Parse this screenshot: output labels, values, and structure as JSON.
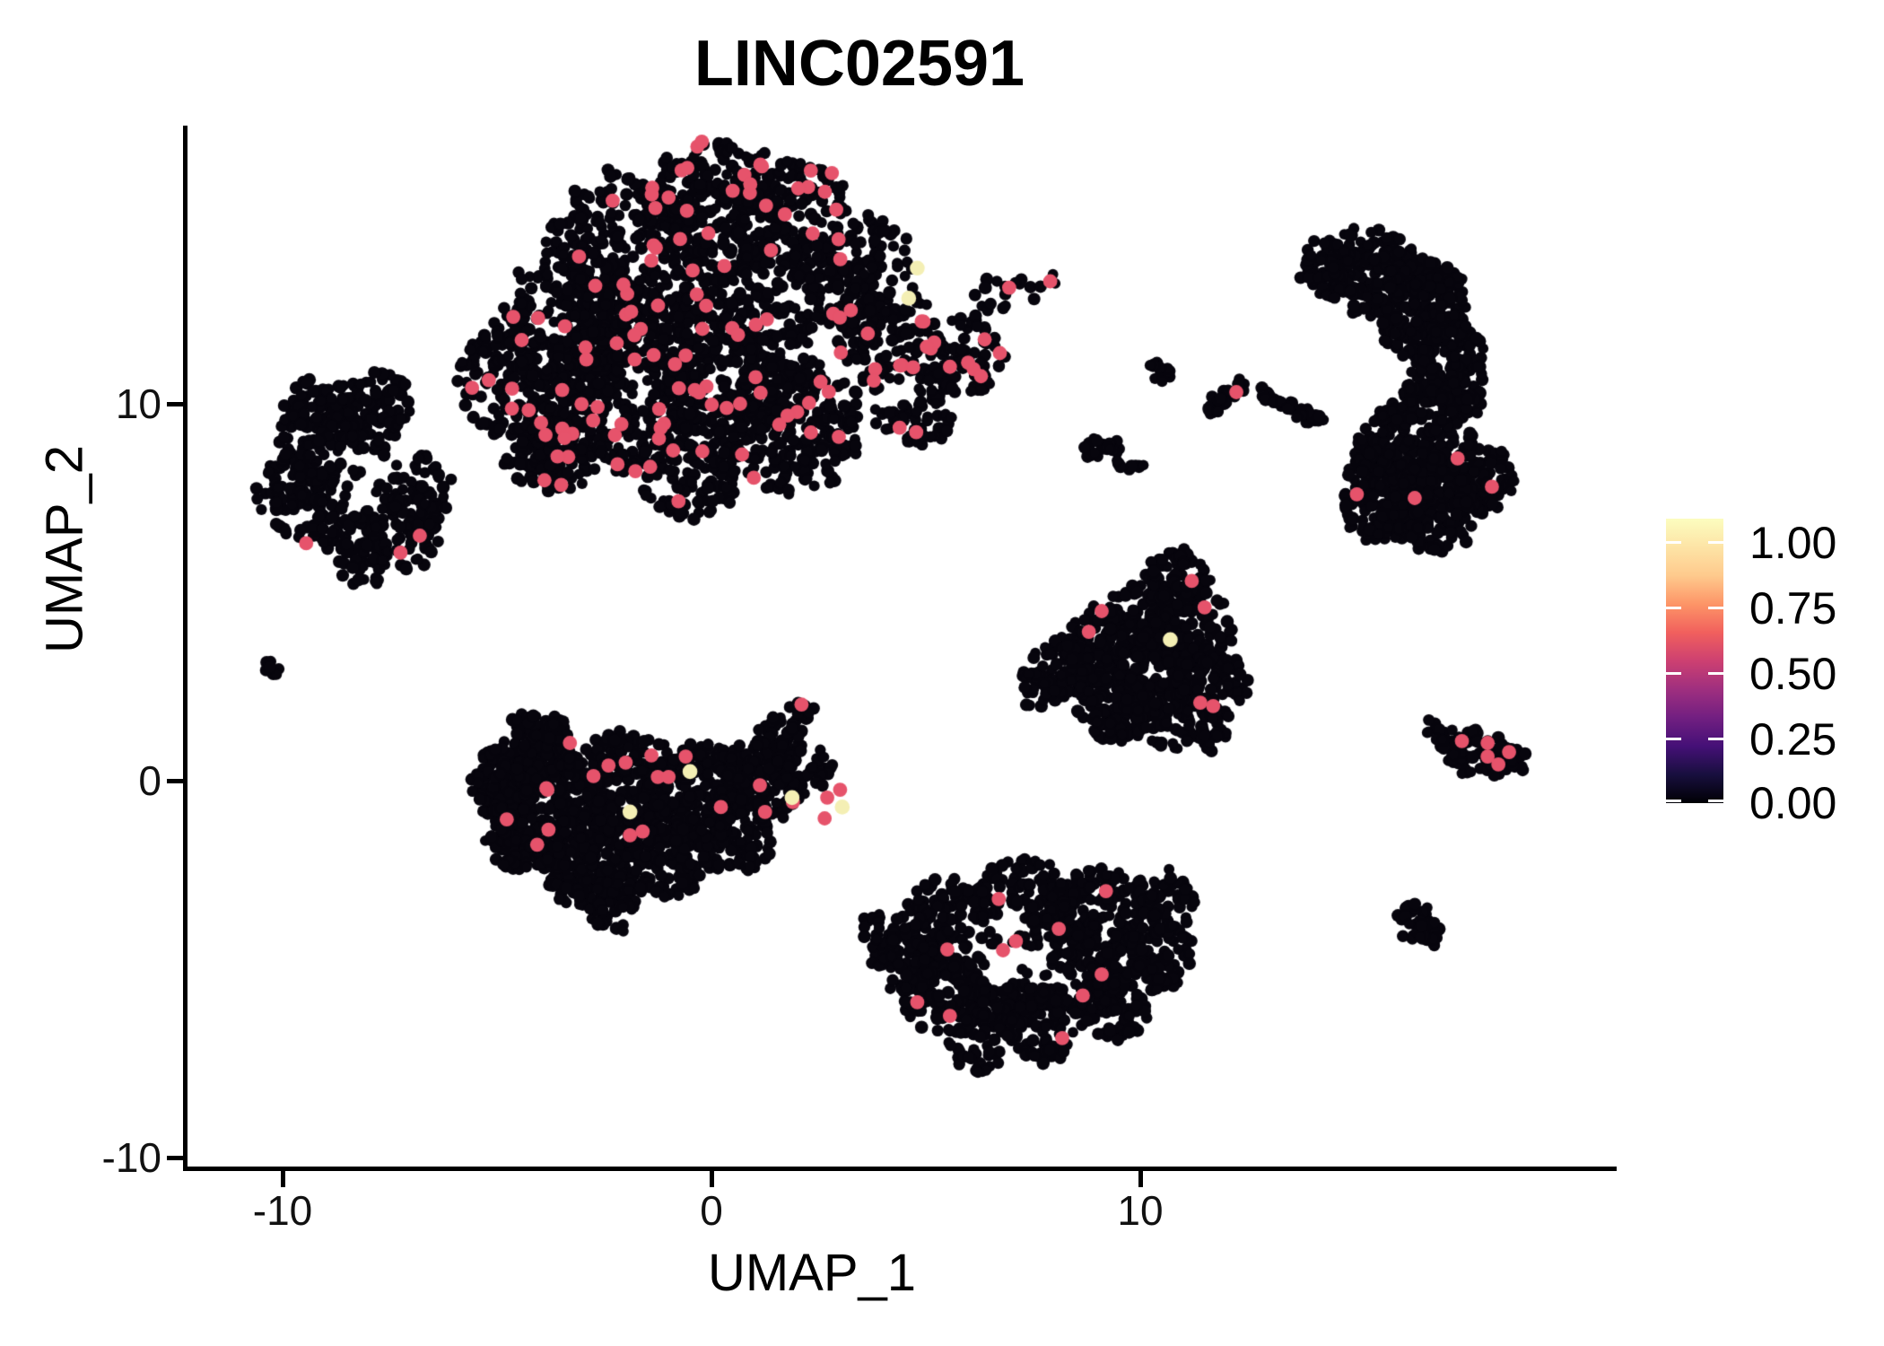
{
  "title": "LINC02591",
  "chart_data": {
    "type": "scatter",
    "title": "LINC02591",
    "xlabel": "UMAP_1",
    "ylabel": "UMAP_2",
    "x_ticks": [
      -10,
      0,
      10
    ],
    "y_ticks": [
      10,
      0,
      -10
    ],
    "x_tick_labels": [
      "-10",
      "0",
      "10"
    ],
    "y_tick_labels": [
      "10",
      "0",
      "-10"
    ],
    "xlim": [
      -12.3,
      21.1
    ],
    "ylim": [
      -10.3,
      17.4
    ],
    "grid": false,
    "legend": {
      "type": "colorbar",
      "position": "right",
      "colormap": "magma",
      "labels": [
        "1.00",
        "0.75",
        "0.50",
        "0.25",
        "0.00"
      ],
      "tick_values": [
        1.0,
        0.75,
        0.5,
        0.25,
        0.0
      ],
      "vmax": 1.09,
      "gradient_stops": [
        "#000004",
        "#180f3e",
        "#451077",
        "#721f81",
        "#9f2f7f",
        "#cd4071",
        "#f1605d",
        "#fd9567",
        "#feca8d",
        "#fde4a6",
        "#fcfdbf"
      ]
    },
    "colors": {
      "background": "#ffffff",
      "point_zero": "#07050d",
      "point_expressing": "#e6536b",
      "point_high": "#f4efb4",
      "axis": "#000000",
      "text": "#111111"
    },
    "clusters": [
      {
        "name": "top-main",
        "n": 2650,
        "blobs": [
          [
            -1.95,
            14.05,
            2.0
          ],
          [
            0.15,
            15.1,
            1.78
          ],
          [
            1.8,
            14.9,
            1.56
          ],
          [
            3.3,
            13.55,
            1.56
          ],
          [
            4.1,
            11.9,
            1.33
          ],
          [
            -3.2,
            12.15,
            1.78
          ],
          [
            -4.45,
            10.6,
            1.56
          ],
          [
            -1.95,
            10.5,
            2.11
          ],
          [
            0.55,
            11.4,
            2.0
          ],
          [
            1.8,
            9.5,
            1.78
          ],
          [
            -0.5,
            8.35,
            1.33
          ],
          [
            -3.4,
            8.9,
            1.11
          ],
          [
            4.75,
            10.0,
            1.11
          ],
          [
            5.9,
            11.3,
            1.0
          ],
          [
            -4.05,
            8.55,
            0.89
          ],
          [
            6.6,
            12.85,
            0.49
          ],
          [
            7.35,
            13.1,
            0.36
          ],
          [
            7.9,
            13.25,
            0.24
          ]
        ],
        "holes": [
          [
            4.33,
            13.1,
            0.5
          ],
          [
            4.43,
            10.48,
            0.45
          ]
        ],
        "red_n": 135,
        "red_points": [
          [
            7.9,
            13.25
          ]
        ],
        "yellow_points": [
          [
            4.8,
            13.6
          ],
          [
            4.6,
            12.8
          ]
        ]
      },
      {
        "name": "right-crescent",
        "n": 1300,
        "blobs": [
          [
            15.4,
            13.55,
            1.11
          ],
          [
            14.35,
            13.65,
            0.78
          ],
          [
            16.55,
            12.6,
            1.22
          ],
          [
            17.1,
            11.05,
            1.11
          ],
          [
            16.9,
            9.65,
            1.11
          ],
          [
            16.05,
            8.7,
            1.11
          ],
          [
            15.7,
            7.5,
            1.11
          ],
          [
            16.9,
            7.25,
            1.11
          ],
          [
            17.9,
            8.0,
            0.89
          ]
        ],
        "holes": [
          [
            16.2,
            10.9,
            0.3
          ],
          [
            16.45,
            9.3,
            0.28
          ]
        ],
        "red_n": 0,
        "red_points": [
          [
            15.05,
            7.6
          ],
          [
            16.4,
            7.5
          ],
          [
            17.4,
            8.55
          ],
          [
            18.2,
            7.8
          ]
        ],
        "yellow_points": []
      },
      {
        "name": "left-donut",
        "n": 640,
        "blobs": [
          [
            -9.05,
            8.8,
            1.22
          ],
          [
            -8.2,
            9.55,
            1.07
          ],
          [
            -7.8,
            10.0,
            0.84
          ],
          [
            -9.25,
            9.9,
            0.78
          ],
          [
            -9.7,
            7.5,
            1.0
          ],
          [
            -8.55,
            7.25,
            1.11
          ],
          [
            -7.3,
            6.65,
            1.07
          ],
          [
            -6.85,
            7.75,
            0.89
          ],
          [
            -8.1,
            5.85,
            0.67
          ]
        ],
        "holes": [
          [
            -8.1,
            7.95,
            0.72
          ]
        ],
        "red_n": 0,
        "red_points": [
          [
            -9.45,
            6.3
          ],
          [
            -7.25,
            6.05
          ],
          [
            -6.8,
            6.5
          ]
        ],
        "yellow_points": []
      },
      {
        "name": "far-left-speck",
        "n": 7,
        "blobs": [
          [
            -10.2,
            3.05,
            0.24
          ]
        ],
        "holes": [],
        "red_n": 0,
        "red_points": [],
        "yellow_points": []
      },
      {
        "name": "center-blob",
        "n": 1650,
        "blobs": [
          [
            -3.6,
            -0.7,
            1.44
          ],
          [
            -1.95,
            -0.07,
            1.33
          ],
          [
            -0.27,
            -0.36,
            1.29
          ],
          [
            1.1,
            -0.05,
            1.07
          ],
          [
            2.1,
            0.43,
            0.78
          ],
          [
            -2.8,
            -2.0,
            1.33
          ],
          [
            -1.1,
            -1.9,
            1.22
          ],
          [
            -4.05,
            0.95,
            0.89
          ],
          [
            -4.85,
            0.0,
            0.89
          ],
          [
            0.55,
            -1.43,
            1.0
          ],
          [
            -4.55,
            -1.55,
            0.78
          ],
          [
            -2.35,
            -3.2,
            0.78
          ],
          [
            1.5,
            1.2,
            0.56
          ],
          [
            1.9,
            1.67,
            0.4
          ],
          [
            2.13,
            1.95,
            0.29
          ]
        ],
        "holes": [],
        "red_n": 4,
        "red_points": [
          [
            -3.3,
            1.0
          ],
          [
            -2.4,
            0.4
          ],
          [
            -2.0,
            0.48
          ],
          [
            -2.75,
            0.12
          ],
          [
            -0.6,
            0.64
          ],
          [
            -1.4,
            0.67
          ],
          [
            -1.25,
            0.1
          ],
          [
            -1.0,
            0.1
          ],
          [
            -3.8,
            -1.3
          ],
          [
            -1.9,
            -1.45
          ],
          [
            -3.85,
            -0.2
          ],
          [
            1.13,
            -0.12
          ],
          [
            1.25,
            -0.83
          ],
          [
            1.9,
            -0.57
          ],
          [
            2.7,
            -0.45
          ],
          [
            3.0,
            -0.24
          ],
          [
            2.64,
            -1.0
          ],
          [
            2.1,
            2.02
          ],
          [
            0.22,
            -0.7
          ]
        ],
        "yellow_points": [
          [
            -0.5,
            0.24
          ],
          [
            -1.9,
            -0.83
          ],
          [
            1.88,
            -0.45
          ],
          [
            3.05,
            -0.7
          ]
        ]
      },
      {
        "name": "right-triangle",
        "n": 950,
        "blobs": [
          [
            10.8,
            5.24,
            0.84
          ],
          [
            10.2,
            4.2,
            1.07
          ],
          [
            11.25,
            4.05,
            1.0
          ],
          [
            9.15,
            3.5,
            1.07
          ],
          [
            8.15,
            2.98,
            0.84
          ],
          [
            10.4,
            2.8,
            1.16
          ],
          [
            11.6,
            2.6,
            0.93
          ],
          [
            9.4,
            2.07,
            1.0
          ],
          [
            10.6,
            1.67,
            0.84
          ],
          [
            7.7,
            2.5,
            0.62
          ],
          [
            11.7,
            1.2,
            0.4
          ]
        ],
        "holes": [],
        "red_n": 0,
        "red_points": [
          [
            11.2,
            5.3
          ],
          [
            11.5,
            4.6
          ],
          [
            9.1,
            4.5
          ],
          [
            8.8,
            3.95
          ],
          [
            11.4,
            2.07
          ],
          [
            11.7,
            1.98
          ]
        ],
        "yellow_points": [
          [
            10.7,
            3.74
          ]
        ]
      },
      {
        "name": "bottom-blob",
        "n": 1300,
        "blobs": [
          [
            5.6,
            -3.8,
            1.22
          ],
          [
            7.25,
            -3.33,
            1.22
          ],
          [
            8.93,
            -3.57,
            1.22
          ],
          [
            10.2,
            -4.52,
            1.11
          ],
          [
            8.5,
            -5.0,
            1.22
          ],
          [
            6.85,
            -5.24,
            1.22
          ],
          [
            5.4,
            -5.7,
            1.0
          ],
          [
            7.7,
            -6.43,
            1.0
          ],
          [
            9.35,
            -5.95,
            0.89
          ],
          [
            6.2,
            -6.9,
            0.84
          ],
          [
            4.55,
            -4.76,
            0.84
          ],
          [
            10.5,
            -3.2,
            0.78
          ],
          [
            4.0,
            -3.93,
            0.56
          ]
        ],
        "holes": [
          [
            6.75,
            -4.4,
            0.85
          ],
          [
            7.7,
            -4.9,
            0.56
          ]
        ],
        "red_n": 0,
        "red_points": [
          [
            6.7,
            -3.14
          ],
          [
            9.2,
            -2.93
          ],
          [
            8.1,
            -3.93
          ],
          [
            7.1,
            -4.26
          ],
          [
            6.8,
            -4.5
          ],
          [
            5.5,
            -4.48
          ],
          [
            4.8,
            -5.88
          ],
          [
            5.56,
            -6.24
          ],
          [
            9.1,
            -5.14
          ],
          [
            8.66,
            -5.7
          ],
          [
            8.18,
            -6.83
          ]
        ],
        "yellow_points": []
      },
      {
        "name": "small-right-comet",
        "n": 120,
        "blobs": [
          [
            17.7,
            0.76,
            0.58
          ],
          [
            18.3,
            0.64,
            0.49
          ],
          [
            18.7,
            0.52,
            0.33
          ],
          [
            17.1,
            1.14,
            0.27
          ],
          [
            16.8,
            1.38,
            0.2
          ],
          [
            16.6,
            1.52,
            0.16
          ]
        ],
        "holes": [],
        "red_n": 0,
        "red_points": [
          [
            17.5,
            1.05
          ],
          [
            18.1,
            1.0
          ],
          [
            18.6,
            0.76
          ],
          [
            18.1,
            0.64
          ],
          [
            18.35,
            0.43
          ]
        ],
        "yellow_points": []
      },
      {
        "name": "small-bottom-right",
        "n": 48,
        "blobs": [
          [
            16.5,
            -3.76,
            0.53
          ],
          [
            16.8,
            -4.1,
            0.36
          ]
        ],
        "holes": [],
        "red_n": 0,
        "red_points": [],
        "yellow_points": []
      },
      {
        "name": "mid-streak-a",
        "n": 32,
        "blobs": [
          [
            11.7,
            9.95,
            0.22
          ],
          [
            11.9,
            10.1,
            0.2
          ],
          [
            12.1,
            10.25,
            0.2
          ],
          [
            12.33,
            10.43,
            0.22
          ]
        ],
        "holes": [],
        "red_n": 0,
        "red_points": [
          [
            12.24,
            10.31
          ]
        ],
        "yellow_points": []
      },
      {
        "name": "mid-streak-b",
        "n": 42,
        "blobs": [
          [
            12.86,
            10.24,
            0.2
          ],
          [
            13.15,
            10.12,
            0.18
          ],
          [
            13.4,
            10.0,
            0.18
          ],
          [
            13.65,
            9.85,
            0.2
          ],
          [
            13.9,
            9.7,
            0.2
          ],
          [
            14.1,
            9.55,
            0.18
          ]
        ],
        "holes": [],
        "red_n": 0,
        "red_points": [],
        "yellow_points": []
      },
      {
        "name": "mid-speck",
        "n": 13,
        "blobs": [
          [
            10.46,
            10.83,
            0.29
          ]
        ],
        "holes": [],
        "red_n": 0,
        "red_points": [],
        "yellow_points": []
      },
      {
        "name": "mid-bits",
        "n": 28,
        "blobs": [
          [
            8.9,
            8.8,
            0.29
          ],
          [
            9.4,
            8.86,
            0.18
          ],
          [
            9.5,
            8.48,
            0.16
          ],
          [
            9.9,
            8.24,
            0.22
          ]
        ],
        "holes": [],
        "red_n": 0,
        "red_points": [],
        "yellow_points": []
      }
    ]
  }
}
